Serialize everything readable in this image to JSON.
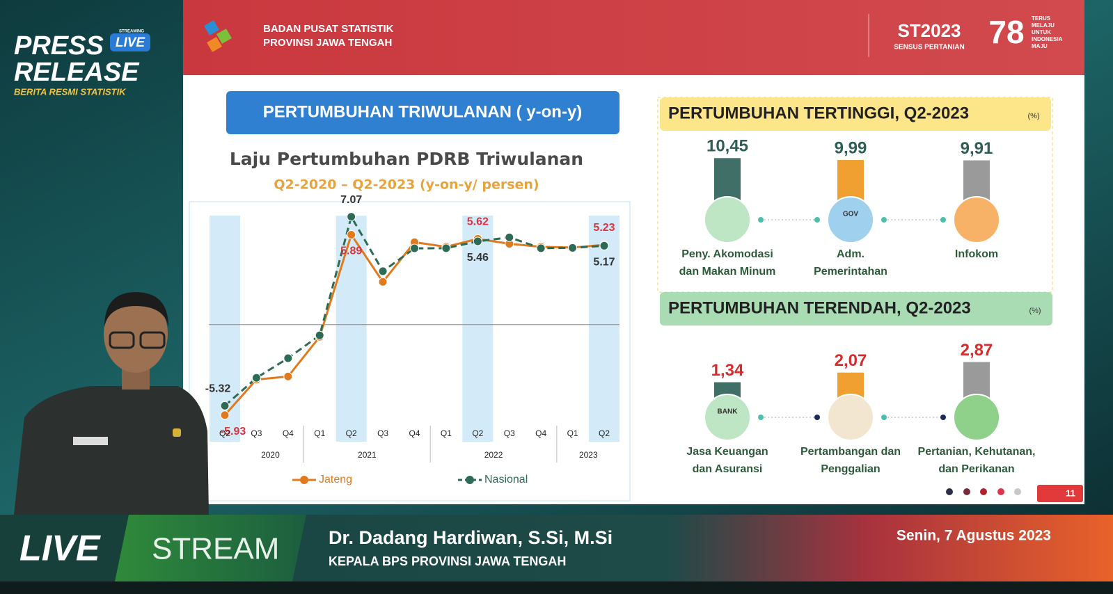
{
  "overlay": {
    "press": "PRESS",
    "streaming": "STREAMING",
    "live": "LIVE",
    "release": "RELEASE",
    "tagline": "BERITA RESMI STATISTIK"
  },
  "header": {
    "org_line1": "BADAN PUSAT STATISTIK",
    "org_line2": "PROVINSI JAWA TENGAH",
    "census": "ST2023",
    "census_sub": "SENSUS PERTANIAN",
    "anniv": "78",
    "anniv_lines": [
      "TERUS",
      "MELAJU",
      "UNTUK",
      "INDONESIA",
      "MAJU"
    ]
  },
  "slide": {
    "title": "PERTUMBUHAN TRIWULANAN ( y-on-y)",
    "page": "11"
  },
  "chart_data": {
    "type": "line",
    "title": "Laju Pertumbuhan PDRB Triwulanan",
    "subtitle": "Q2-2020 – Q2-2023 (y-on-y/ persen)",
    "categories": [
      "Q2",
      "Q3",
      "Q4",
      "Q1",
      "Q2",
      "Q3",
      "Q4",
      "Q1",
      "Q2",
      "Q3",
      "Q4",
      "Q1",
      "Q2"
    ],
    "groups": [
      "2020",
      "2021",
      "2022",
      "2023"
    ],
    "series": [
      {
        "name": "Jateng",
        "color": "#e07a1f",
        "label_color": "#d9343f",
        "values": [
          -5.93,
          -3.6,
          -3.4,
          -0.8,
          5.89,
          2.8,
          5.4,
          5.1,
          5.62,
          5.3,
          5.1,
          5.05,
          5.23
        ]
      },
      {
        "name": "Nasional",
        "color": "#2e6b55",
        "label_color": "#333333",
        "values": [
          -5.32,
          -3.49,
          -2.2,
          -0.7,
          7.07,
          3.5,
          5.0,
          5.01,
          5.46,
          5.72,
          5.01,
          5.03,
          5.17
        ]
      }
    ],
    "ylim": [
      -7.9,
      7.6
    ]
  },
  "highest": {
    "title": "PERTUMBUHAN TERTINGGI, Q2-2023",
    "unit": "(%)",
    "labels": [
      [
        "Peny. Akomodasi",
        "dan Makan Minum"
      ],
      [
        "Adm.",
        "Pemerintahan"
      ],
      [
        "Infokom"
      ]
    ],
    "icon_texts": [
      "",
      "GOV",
      ""
    ],
    "values": [
      10.45,
      9.99,
      9.91
    ],
    "value_labels": [
      "10,45",
      "9,99",
      "9,91"
    ],
    "colors": [
      "#3f6f67",
      "#f0a030",
      "#9a9a9a"
    ],
    "value_color": "#2f5e56"
  },
  "lowest": {
    "title": "PERTUMBUHAN TERENDAH, Q2-2023",
    "unit": "(%)",
    "labels": [
      [
        "Jasa Keuangan",
        "dan Asuransi"
      ],
      [
        "Pertambangan dan",
        "Penggalian"
      ],
      [
        "Pertanian, Kehutanan,",
        "dan Perikanan"
      ]
    ],
    "icon_texts": [
      "BANK",
      "",
      ""
    ],
    "values": [
      1.34,
      2.07,
      2.87
    ],
    "value_labels": [
      "1,34",
      "2,07",
      "2,87"
    ],
    "colors": [
      "#3f6f67",
      "#f0a030",
      "#9a9a9a"
    ],
    "value_color": "#d92b2b"
  },
  "footer": {
    "live": "LIVE",
    "stream": "STREAM",
    "name": "Dr. Dadang Hardiwan, S.Si, M.Si",
    "position": "KEPALA BPS PROVINSI JAWA TENGAH",
    "date": "Senin, 7 Agustus 2023"
  }
}
